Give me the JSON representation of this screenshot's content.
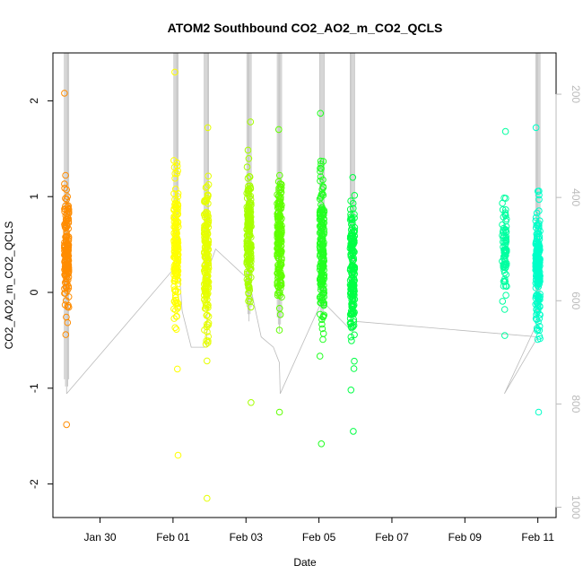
{
  "chart_data": {
    "type": "scatter",
    "title": "ATOM2 Southbound CO2_AO2_m_CO2_QCLS",
    "xlabel": "Date",
    "ylabel": "CO2_AO2_m_CO2_QCLS",
    "x_ticks": [
      {
        "value": "2017-01-30",
        "label": "Jan 30"
      },
      {
        "value": "2017-02-01",
        "label": "Feb 01"
      },
      {
        "value": "2017-02-03",
        "label": "Feb 03"
      },
      {
        "value": "2017-02-05",
        "label": "Feb 05"
      },
      {
        "value": "2017-02-07",
        "label": "Feb 07"
      },
      {
        "value": "2017-02-09",
        "label": "Feb 09"
      },
      {
        "value": "2017-02-11",
        "label": "Feb 11"
      }
    ],
    "xlim": [
      "2017-01-28T17:00",
      "2017-02-11T12:00"
    ],
    "ylim": [
      -2.35,
      2.5
    ],
    "y_ticks": [
      -2,
      -1,
      0,
      1,
      2
    ],
    "y2_axis": {
      "ticks": [
        200,
        400,
        600,
        800,
        1000
      ],
      "lim": [
        120,
        1020
      ],
      "direction": "reversed",
      "color": "#bbbbbb"
    },
    "grid": false,
    "legend": "none",
    "marker": "open-circle",
    "series": [
      {
        "x": "2017-01-29T02:00",
        "color": "#ff8c00",
        "y_median": 0.45,
        "y_sd": 0.45,
        "n": 160,
        "y_min": -1.38,
        "y_max": 2.08
      },
      {
        "x": "2017-02-01T02:00",
        "color": "#ffff00",
        "y_median": 0.45,
        "y_sd": 0.55,
        "n": 170,
        "y_min": -1.7,
        "y_max": 2.3
      },
      {
        "x": "2017-02-01T22:00",
        "color": "#e6ff00",
        "y_median": 0.3,
        "y_sd": 0.55,
        "n": 180,
        "y_min": -2.15,
        "y_max": 1.72
      },
      {
        "x": "2017-02-03T02:00",
        "color": "#a6ff00",
        "y_median": 0.6,
        "y_sd": 0.45,
        "n": 180,
        "y_min": -1.15,
        "y_max": 1.78
      },
      {
        "x": "2017-02-03T22:00",
        "color": "#5fff00",
        "y_median": 0.55,
        "y_sd": 0.45,
        "n": 180,
        "y_min": -1.25,
        "y_max": 1.7
      },
      {
        "x": "2017-02-05T02:00",
        "color": "#22ff22",
        "y_median": 0.45,
        "y_sd": 0.55,
        "n": 190,
        "y_min": -1.58,
        "y_max": 1.87
      },
      {
        "x": "2017-02-05T22:00",
        "color": "#00ff44",
        "y_median": 0.2,
        "y_sd": 0.5,
        "n": 180,
        "y_min": -1.45,
        "y_max": 1.2
      },
      {
        "x": "2017-02-10T02:00",
        "color": "#00ffa0",
        "y_median": 0.45,
        "y_sd": 0.35,
        "n": 80,
        "y_min": -0.45,
        "y_max": 1.68
      },
      {
        "x": "2017-02-11T00:00",
        "color": "#00ffc8",
        "y_median": 0.25,
        "y_sd": 0.4,
        "n": 190,
        "y_min": -1.25,
        "y_max": 1.72
      }
    ],
    "altitude_trace": {
      "color": "#bbbbbb",
      "points": [
        [
          "2017-01-29T02:00",
          780
        ],
        [
          "2017-02-01T00:00",
          540
        ],
        [
          "2017-02-01T03:00",
          500
        ],
        [
          "2017-02-01T06:00",
          620
        ],
        [
          "2017-02-01T12:00",
          690
        ],
        [
          "2017-02-01T22:00",
          690
        ],
        [
          "2017-02-01T23:00",
          540
        ],
        [
          "2017-02-02T04:00",
          500
        ],
        [
          "2017-02-03T02:00",
          560
        ],
        [
          "2017-02-03T10:00",
          670
        ],
        [
          "2017-02-03T18:00",
          690
        ],
        [
          "2017-02-03T22:00",
          720
        ],
        [
          "2017-02-03T22:30",
          780
        ],
        [
          "2017-02-05T02:00",
          600
        ],
        [
          "2017-02-05T22:00",
          660
        ],
        [
          "2017-02-06T00:00",
          640
        ],
        [
          "2017-02-11T00:00",
          670
        ],
        [
          "2017-02-10T02:00",
          780
        ],
        [
          "2017-02-11T00:00",
          640
        ]
      ],
      "spikes": [
        {
          "x": "2017-01-29T02:00",
          "top": 120,
          "bottom": 780
        },
        {
          "x": "2017-02-01T02:00",
          "top": 120,
          "bottom": 540
        },
        {
          "x": "2017-02-01T22:00",
          "top": 120,
          "bottom": 560
        },
        {
          "x": "2017-02-03T02:00",
          "top": 120,
          "bottom": 640
        },
        {
          "x": "2017-02-03T22:00",
          "top": 120,
          "bottom": 660
        },
        {
          "x": "2017-02-05T02:00",
          "top": 120,
          "bottom": 640
        },
        {
          "x": "2017-02-05T22:00",
          "top": 120,
          "bottom": 620
        },
        {
          "x": "2017-02-11T00:00",
          "top": 120,
          "bottom": 640
        }
      ]
    }
  }
}
